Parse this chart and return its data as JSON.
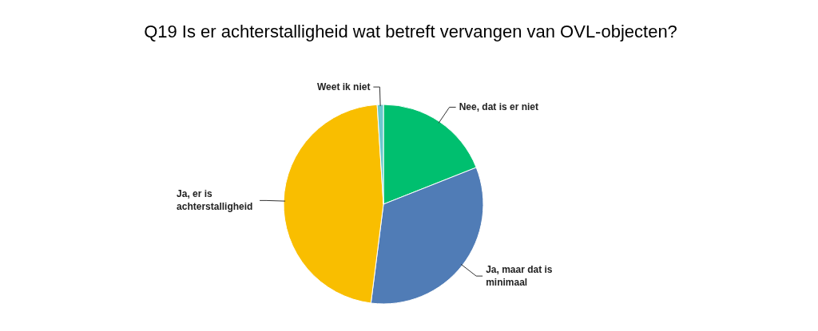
{
  "chart_data": {
    "type": "pie",
    "title": "Q19 Is er achterstalligheid wat betreft vervangen van OVL-objecten?",
    "categories": [
      "Nee, dat is er niet",
      "Ja, maar dat is minimaal",
      "Ja, er is achterstalligheid",
      "Weet ik niet"
    ],
    "values": [
      19,
      33,
      47,
      1
    ],
    "colors": [
      "#00bf6f",
      "#507cb6",
      "#f9be00",
      "#6bc8cd"
    ]
  }
}
